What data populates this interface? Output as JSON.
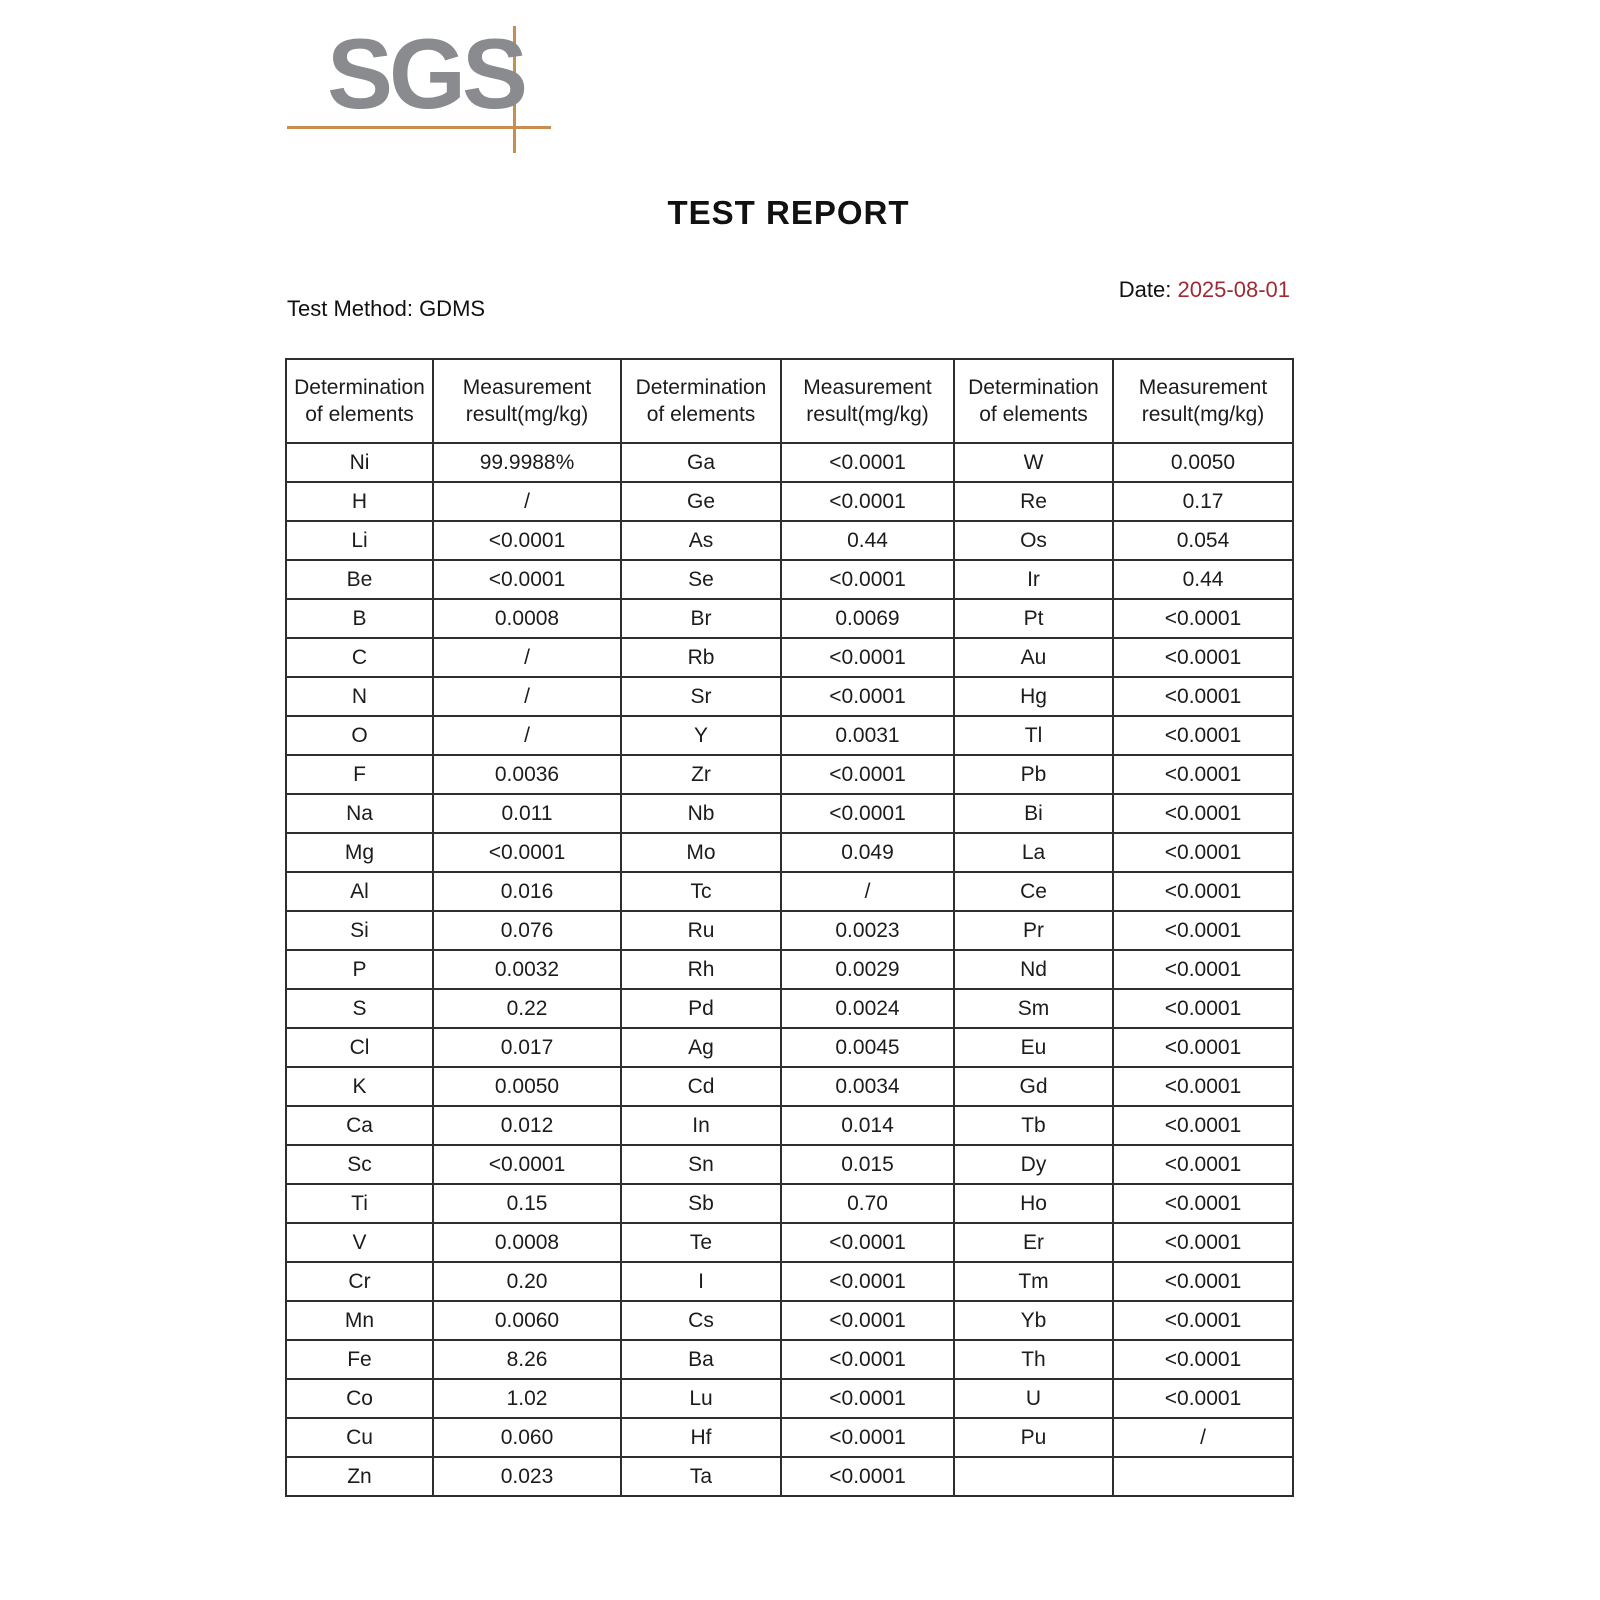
{
  "logo": {
    "text": "SGS",
    "text_color": "#8a8b8e",
    "crosshair_color": "#c78f4e"
  },
  "title": "TEST REPORT",
  "test_method": "Test Method: GDMS",
  "date": {
    "label": "Date:",
    "value": "2025-08-01",
    "value_color": "#9e2b33"
  },
  "table": {
    "header": {
      "element_line1": "Determination",
      "element_line2": "of elements",
      "result_line1": "Measurement",
      "result_line2": "result(mg/kg)"
    },
    "rows": [
      [
        "Ni",
        "99.9988%",
        "Ga",
        "<0.0001",
        "W",
        "0.0050"
      ],
      [
        "H",
        "/",
        "Ge",
        "<0.0001",
        "Re",
        "0.17"
      ],
      [
        "Li",
        "<0.0001",
        "As",
        "0.44",
        "Os",
        "0.054"
      ],
      [
        "Be",
        "<0.0001",
        "Se",
        "<0.0001",
        "Ir",
        "0.44"
      ],
      [
        "B",
        "0.0008",
        "Br",
        "0.0069",
        "Pt",
        "<0.0001"
      ],
      [
        "C",
        "/",
        "Rb",
        "<0.0001",
        "Au",
        "<0.0001"
      ],
      [
        "N",
        "/",
        "Sr",
        "<0.0001",
        "Hg",
        "<0.0001"
      ],
      [
        "O",
        "/",
        "Y",
        "0.0031",
        "Tl",
        "<0.0001"
      ],
      [
        "F",
        "0.0036",
        "Zr",
        "<0.0001",
        "Pb",
        "<0.0001"
      ],
      [
        "Na",
        "0.011",
        "Nb",
        "<0.0001",
        "Bi",
        "<0.0001"
      ],
      [
        "Mg",
        "<0.0001",
        "Mo",
        "0.049",
        "La",
        "<0.0001"
      ],
      [
        "Al",
        "0.016",
        "Tc",
        "/",
        "Ce",
        "<0.0001"
      ],
      [
        "Si",
        "0.076",
        "Ru",
        "0.0023",
        "Pr",
        "<0.0001"
      ],
      [
        "P",
        "0.0032",
        "Rh",
        "0.0029",
        "Nd",
        "<0.0001"
      ],
      [
        "S",
        "0.22",
        "Pd",
        "0.0024",
        "Sm",
        "<0.0001"
      ],
      [
        "Cl",
        "0.017",
        "Ag",
        "0.0045",
        "Eu",
        "<0.0001"
      ],
      [
        "K",
        "0.0050",
        "Cd",
        "0.0034",
        "Gd",
        "<0.0001"
      ],
      [
        "Ca",
        "0.012",
        "In",
        "0.014",
        "Tb",
        "<0.0001"
      ],
      [
        "Sc",
        "<0.0001",
        "Sn",
        "0.015",
        "Dy",
        "<0.0001"
      ],
      [
        "Ti",
        "0.15",
        "Sb",
        "0.70",
        "Ho",
        "<0.0001"
      ],
      [
        "V",
        "0.0008",
        "Te",
        "<0.0001",
        "Er",
        "<0.0001"
      ],
      [
        "Cr",
        "0.20",
        "I",
        "<0.0001",
        "Tm",
        "<0.0001"
      ],
      [
        "Mn",
        "0.0060",
        "Cs",
        "<0.0001",
        "Yb",
        "<0.0001"
      ],
      [
        "Fe",
        "8.26",
        "Ba",
        "<0.0001",
        "Th",
        "<0.0001"
      ],
      [
        "Co",
        "1.02",
        "Lu",
        "<0.0001",
        "U",
        "<0.0001"
      ],
      [
        "Cu",
        "0.060",
        "Hf",
        "<0.0001",
        "Pu",
        "/"
      ],
      [
        "Zn",
        "0.023",
        "Ta",
        "<0.0001",
        "",
        ""
      ]
    ]
  }
}
